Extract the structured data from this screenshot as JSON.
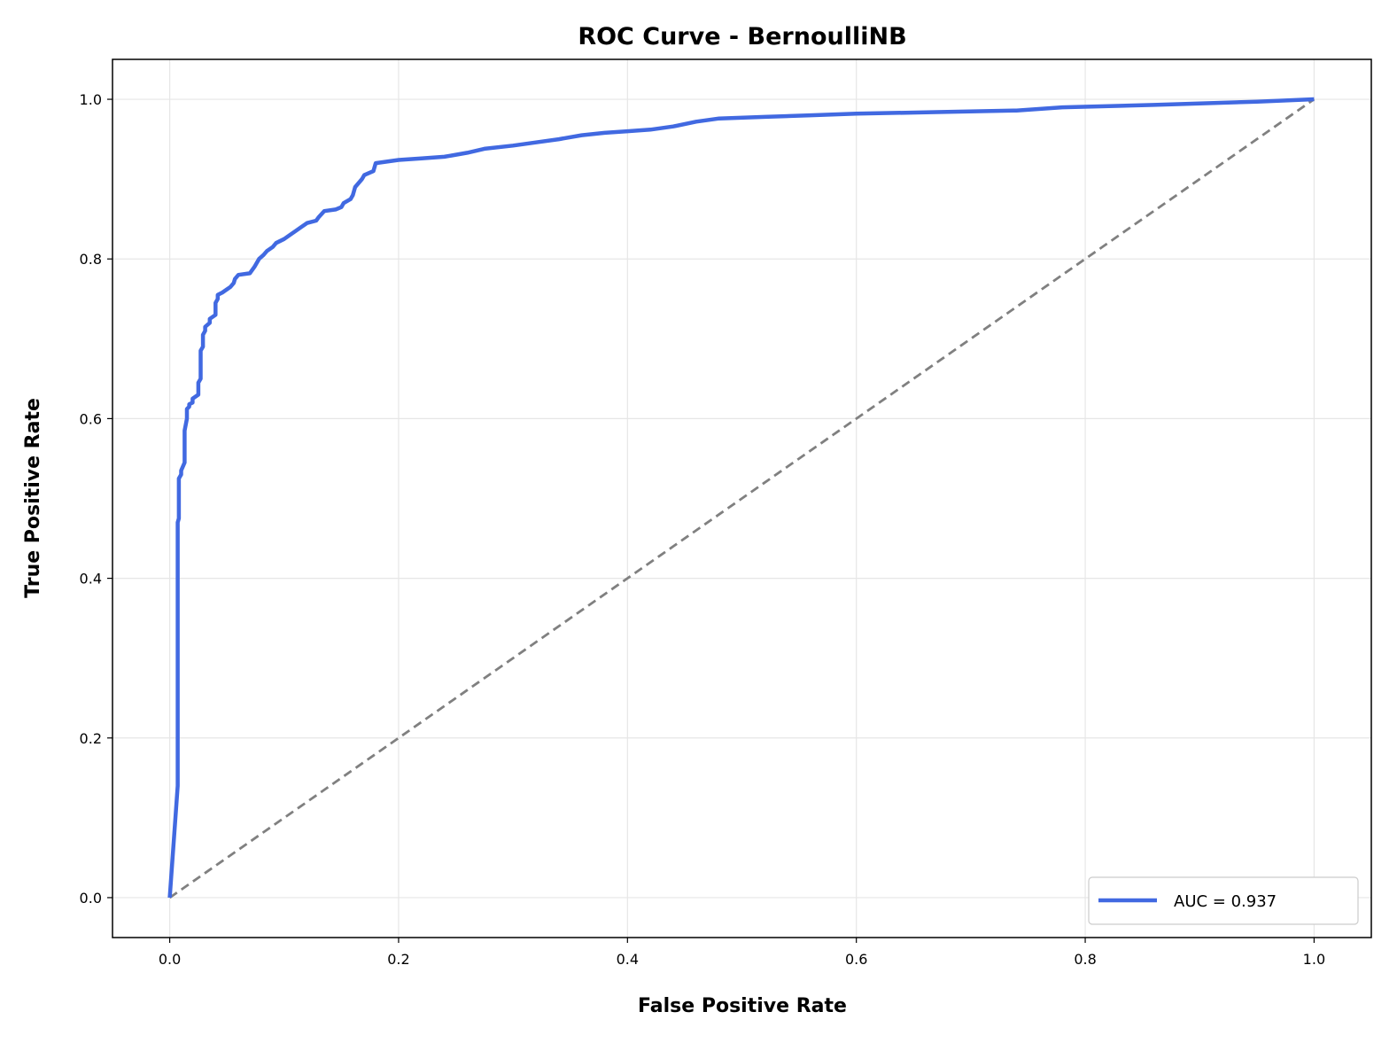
{
  "chart_data": {
    "type": "line",
    "title": "ROC Curve - BernoulliNB",
    "xlabel": "False Positive Rate",
    "ylabel": "True Positive Rate",
    "xlim": [
      -0.05,
      1.05
    ],
    "ylim": [
      -0.05,
      1.05
    ],
    "xticks": [
      "0.0",
      "0.2",
      "0.4",
      "0.6",
      "0.8",
      "1.0"
    ],
    "yticks": [
      "0.0",
      "0.2",
      "0.4",
      "0.6",
      "0.8",
      "1.0"
    ],
    "grid": true,
    "legend_position": "lower-right",
    "series": [
      {
        "name": "AUC = 0.937",
        "color": "#4169E1",
        "style": "solid",
        "x": [
          0.0,
          0.007,
          0.007,
          0.008,
          0.008,
          0.01,
          0.01,
          0.013,
          0.013,
          0.015,
          0.015,
          0.017,
          0.017,
          0.02,
          0.02,
          0.025,
          0.025,
          0.027,
          0.027,
          0.029,
          0.029,
          0.031,
          0.031,
          0.035,
          0.035,
          0.04,
          0.04,
          0.042,
          0.042,
          0.046,
          0.05,
          0.053,
          0.056,
          0.057,
          0.06,
          0.07,
          0.074,
          0.078,
          0.082,
          0.085,
          0.09,
          0.093,
          0.1,
          0.105,
          0.11,
          0.115,
          0.12,
          0.128,
          0.13,
          0.135,
          0.145,
          0.15,
          0.152,
          0.158,
          0.16,
          0.162,
          0.168,
          0.17,
          0.178,
          0.18,
          0.2,
          0.22,
          0.24,
          0.26,
          0.275,
          0.3,
          0.32,
          0.34,
          0.36,
          0.38,
          0.4,
          0.42,
          0.44,
          0.46,
          0.48,
          0.52,
          0.56,
          0.6,
          0.67,
          0.74,
          0.78,
          0.86,
          0.95,
          1.0
        ],
        "y": [
          0.0,
          0.14,
          0.47,
          0.475,
          0.525,
          0.53,
          0.535,
          0.545,
          0.585,
          0.6,
          0.612,
          0.615,
          0.618,
          0.62,
          0.625,
          0.63,
          0.645,
          0.65,
          0.685,
          0.69,
          0.705,
          0.71,
          0.715,
          0.72,
          0.725,
          0.73,
          0.745,
          0.75,
          0.755,
          0.758,
          0.762,
          0.765,
          0.77,
          0.775,
          0.78,
          0.782,
          0.79,
          0.8,
          0.805,
          0.81,
          0.815,
          0.82,
          0.825,
          0.83,
          0.835,
          0.84,
          0.845,
          0.848,
          0.852,
          0.86,
          0.862,
          0.865,
          0.87,
          0.875,
          0.88,
          0.89,
          0.9,
          0.905,
          0.91,
          0.92,
          0.924,
          0.926,
          0.928,
          0.933,
          0.938,
          0.942,
          0.946,
          0.95,
          0.955,
          0.958,
          0.96,
          0.962,
          0.966,
          0.972,
          0.976,
          0.978,
          0.98,
          0.982,
          0.984,
          0.986,
          0.99,
          0.993,
          0.997,
          1.0
        ]
      },
      {
        "name": "",
        "color": "#808080",
        "style": "dashed",
        "x": [
          0.0,
          1.0
        ],
        "y": [
          0.0,
          1.0
        ]
      }
    ],
    "legend": {
      "entries": [
        "AUC = 0.937"
      ]
    }
  }
}
